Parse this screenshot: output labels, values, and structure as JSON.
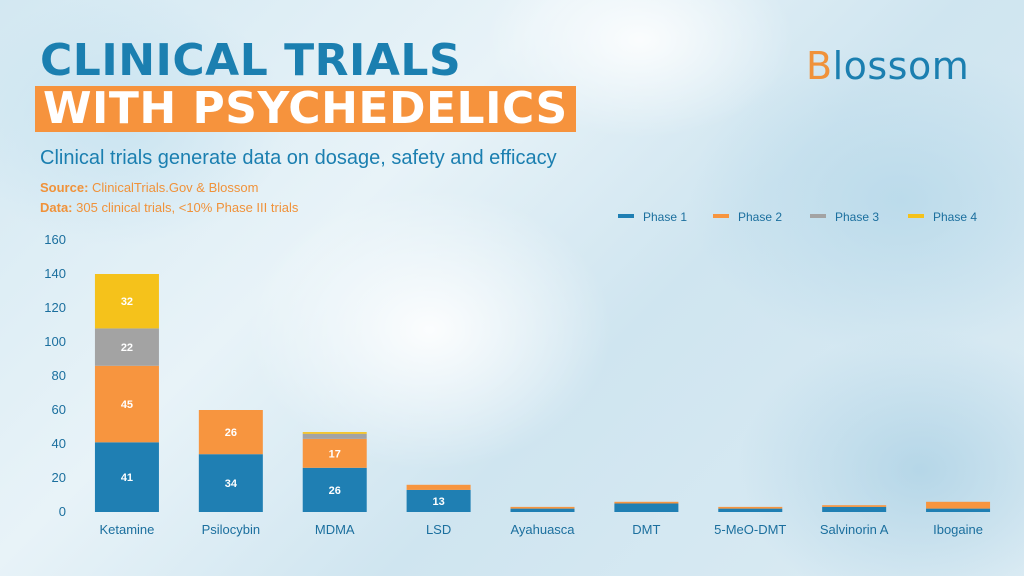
{
  "title_line1": "CLINICAL TRIALS",
  "title_line2": "WITH PSYCHEDELICS",
  "logo": {
    "first_letter": "B",
    "rest": "lossom"
  },
  "subtitle": "Clinical trials generate data on dosage, safety and efficacy",
  "source": {
    "label": "Source:",
    "text": "ClinicalTrials.Gov & Blossom"
  },
  "data_note": {
    "label": "Data:",
    "text": "305 clinical trials, <10% Phase III trials"
  },
  "colors": {
    "title": "#1b7fb0",
    "accent": "#f6933d",
    "phase1": "#1f7fb3",
    "phase2": "#f7953f",
    "phase3": "#a3a3a3",
    "phase4": "#f5c21b"
  },
  "chart_data": {
    "type": "bar",
    "stacked": true,
    "categories": [
      "Ketamine",
      "Psilocybin",
      "MDMA",
      "LSD",
      "Ayahuasca",
      "DMT",
      "5-MeO-DMT",
      "Salvinorin A",
      "Ibogaine"
    ],
    "series": [
      {
        "name": "Phase 1",
        "color": "#1f7fb3",
        "values": [
          41,
          34,
          26,
          13,
          2,
          5,
          2,
          3,
          2
        ]
      },
      {
        "name": "Phase 2",
        "color": "#f7953f",
        "values": [
          45,
          26,
          17,
          3,
          1,
          1,
          1,
          1,
          4
        ]
      },
      {
        "name": "Phase 3",
        "color": "#a3a3a3",
        "values": [
          22,
          0,
          3,
          0,
          0,
          0,
          0,
          0,
          0
        ]
      },
      {
        "name": "Phase 4",
        "color": "#f5c21b",
        "values": [
          32,
          0,
          1,
          0,
          0,
          0,
          0,
          0,
          0
        ]
      }
    ],
    "data_labels": [
      [
        "41",
        "45",
        "22",
        "32"
      ],
      [
        "34",
        "26",
        "",
        ""
      ],
      [
        "26",
        "17",
        "",
        ""
      ],
      [
        "13",
        "",
        "",
        ""
      ],
      [
        "",
        "",
        "",
        ""
      ],
      [
        "",
        "",
        "",
        ""
      ],
      [
        "",
        "",
        "",
        ""
      ],
      [
        "",
        "",
        "",
        ""
      ],
      [
        "",
        "",
        "",
        ""
      ]
    ],
    "yticks": [
      0,
      20,
      40,
      60,
      80,
      100,
      120,
      140,
      160
    ],
    "ylim": [
      0,
      160
    ],
    "grid": false,
    "legend_position": "top-right",
    "xlabel": "",
    "ylabel": ""
  }
}
